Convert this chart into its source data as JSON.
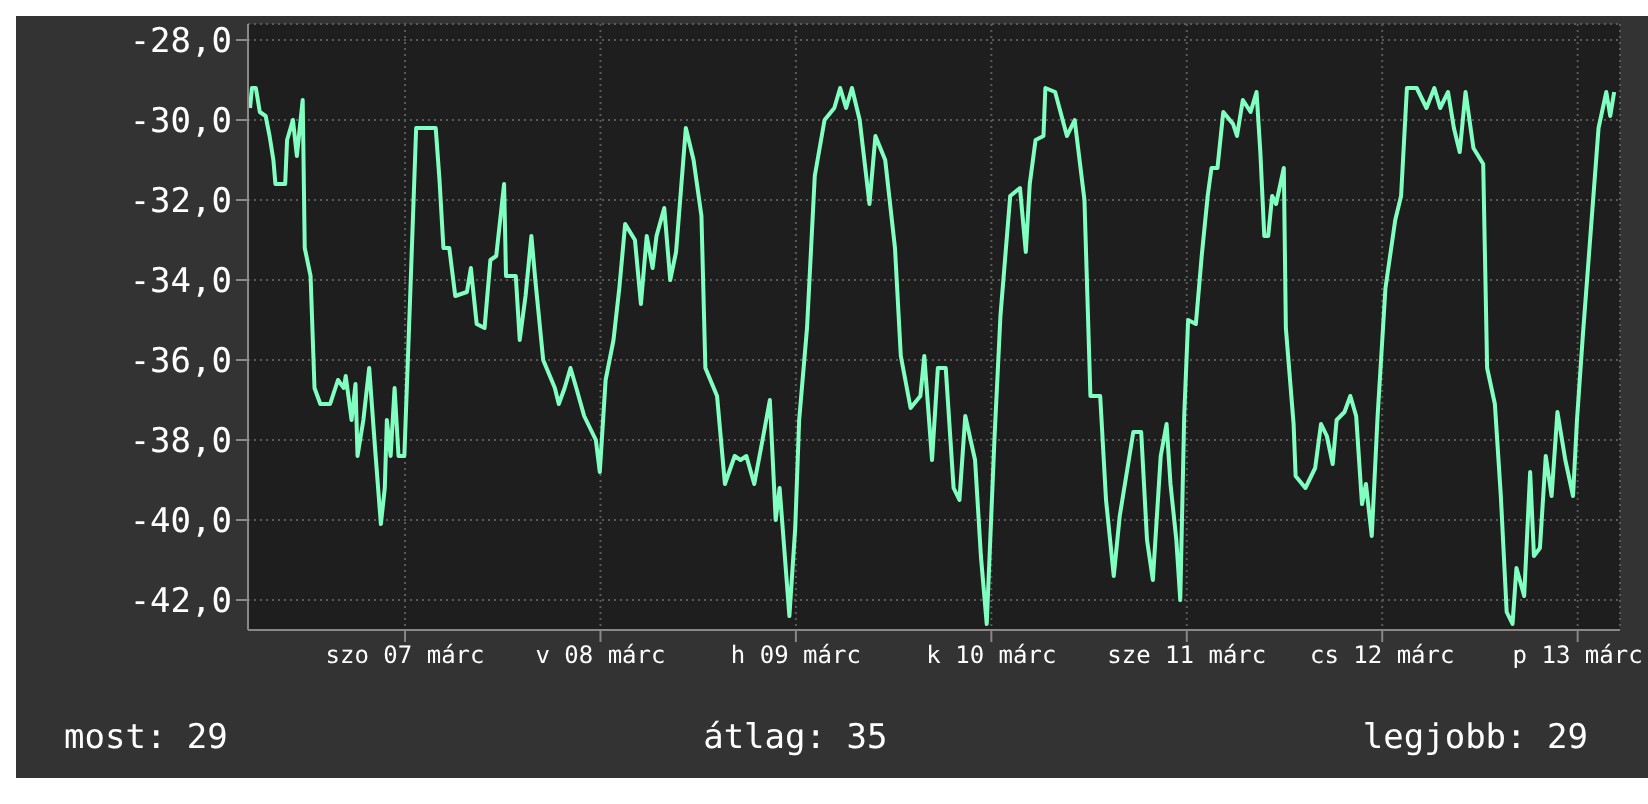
{
  "chart_data": {
    "type": "line",
    "x": [
      "--03-06T12:58",
      "--03-06T13:12",
      "--03-06T13:41",
      "--03-06T14:10",
      "--03-06T14:53",
      "--03-06T15:22",
      "--03-06T15:50",
      "--03-06T16:05",
      "--03-06T17:17",
      "--03-06T17:31",
      "--03-06T18:14",
      "--03-06T18:43",
      "--03-06T19:26",
      "--03-06T19:41",
      "--03-06T20:24",
      "--03-06T20:53",
      "--03-06T21:36",
      "--03-06T22:48",
      "--03-06T23:46",
      "--03-07T00:29",
      "--03-07T00:43",
      "--03-07T01:26",
      "--03-07T01:55",
      "--03-07T02:10",
      "--03-07T02:53",
      "--03-07T03:36",
      "--03-07T04:19",
      "--03-07T05:02",
      "--03-07T05:31",
      "--03-07T05:46",
      "--03-07T06:14",
      "--03-07T06:43",
      "--03-07T07:12",
      "--03-07T07:55",
      "--03-07T08:38",
      "--03-07T09:22",
      "--03-07T11:46",
      "--03-07T12:14",
      "--03-07T12:43",
      "--03-07T13:26",
      "--03-07T14:10",
      "--03-07T15:36",
      "--03-07T16:05",
      "--03-07T16:48",
      "--03-07T17:46",
      "--03-07T18:29",
      "--03-07T19:12",
      "--03-07T20:10",
      "--03-07T20:24",
      "--03-07T21:36",
      "--03-07T22:05",
      "--03-07T22:48",
      "--03-07T23:31",
      "--03-08T00:00",
      "--03-08T00:58",
      "--03-08T02:24",
      "--03-08T02:53",
      "--03-08T03:36",
      "--03-08T04:19",
      "--03-08T05:02",
      "--03-08T06:00",
      "--03-08T06:43",
      "--03-08T07:26",
      "--03-08T07:55",
      "--03-08T08:38",
      "--03-08T09:36",
      "--03-08T10:19",
      "--03-08T11:02",
      "--03-08T12:14",
      "--03-08T12:58",
      "--03-08T13:41",
      "--03-08T14:24",
      "--03-08T14:53",
      "--03-08T15:50",
      "--03-08T16:34",
      "--03-08T17:17",
      "--03-08T18:29",
      "--03-08T19:26",
      "--03-08T20:24",
      "--03-08T20:53",
      "--03-08T22:19",
      "--03-08T23:17",
      "--03-09T00:29",
      "--03-09T01:12",
      "--03-09T01:55",
      "--03-09T02:53",
      "--03-09T04:05",
      "--03-09T04:48",
      "--03-09T05:31",
      "--03-09T06:00",
      "--03-09T07:12",
      "--03-09T07:55",
      "--03-09T08:24",
      "--03-09T09:22",
      "--03-09T10:19",
      "--03-09T11:31",
      "--03-09T12:43",
      "--03-09T13:26",
      "--03-09T14:10",
      "--03-09T14:53",
      "--03-09T15:50",
      "--03-09T17:02",
      "--03-09T17:46",
      "--03-09T18:58",
      "--03-09T20:10",
      "--03-09T20:53",
      "--03-09T22:05",
      "--03-09T23:17",
      "--03-09T23:46",
      "--03-10T00:43",
      "--03-10T01:26",
      "--03-10T02:24",
      "--03-10T03:22",
      "--03-10T04:05",
      "--03-10T04:48",
      "--03-10T06:00",
      "--03-10T06:43",
      "--03-10T07:26",
      "--03-10T08:24",
      "--03-10T09:07",
      "--03-10T10:19",
      "--03-10T11:31",
      "--03-10T12:14",
      "--03-10T12:43",
      "--03-10T13:26",
      "--03-10T14:24",
      "--03-10T14:38",
      "--03-10T15:50",
      "--03-10T17:17",
      "--03-10T18:14",
      "--03-10T19:26",
      "--03-10T20:10",
      "--03-10T21:22",
      "--03-10T22:05",
      "--03-10T23:02",
      "--03-10T23:46",
      "--03-11T00:29",
      "--03-11T01:26",
      "--03-11T02:24",
      "--03-11T03:07",
      "--03-11T03:50",
      "--03-11T04:48",
      "--03-11T05:31",
      "--03-11T06:00",
      "--03-11T06:43",
      "--03-11T07:12",
      "--03-11T07:41",
      "--03-11T08:10",
      "--03-11T09:07",
      "--03-11T09:50",
      "--03-11T10:34",
      "--03-11T11:02",
      "--03-11T11:46",
      "--03-11T12:29",
      "--03-11T13:41",
      "--03-11T14:10",
      "--03-11T14:53",
      "--03-11T15:50",
      "--03-11T16:34",
      "--03-11T17:02",
      "--03-11T17:31",
      "--03-11T18:00",
      "--03-11T18:29",
      "--03-11T18:58",
      "--03-11T19:55",
      "--03-11T20:10",
      "--03-11T21:07",
      "--03-11T21:22",
      "--03-11T22:34",
      "--03-11T23:46",
      "--03-12T00:29",
      "--03-12T01:12",
      "--03-12T01:55",
      "--03-12T02:24",
      "--03-12T03:22",
      "--03-12T04:05",
      "--03-12T04:48",
      "--03-12T05:31",
      "--03-12T06:00",
      "--03-12T06:43",
      "--03-12T07:26",
      "--03-12T08:24",
      "--03-12T09:36",
      "--03-12T10:19",
      "--03-12T11:02",
      "--03-12T12:14",
      "--03-12T13:26",
      "--03-12T14:24",
      "--03-12T15:07",
      "--03-12T16:05",
      "--03-12T16:48",
      "--03-12T17:31",
      "--03-12T18:14",
      "--03-12T19:12",
      "--03-12T20:24",
      "--03-12T20:53",
      "--03-12T21:50",
      "--03-12T22:34",
      "--03-12T23:17",
      "--03-13T00:00",
      "--03-13T00:29",
      "--03-13T01:26",
      "--03-13T02:10",
      "--03-13T02:38",
      "--03-13T03:22",
      "--03-13T04:05",
      "--03-13T04:48",
      "--03-13T05:31",
      "--03-13T06:29",
      "--03-13T07:26",
      "--03-13T07:55",
      "--03-13T08:38",
      "--03-13T09:36",
      "--03-13T10:34",
      "--03-13T11:31",
      "--03-13T12:00",
      "--03-13T12:29"
    ],
    "series": [
      {
        "color": "#80ffc0",
        "values": [
          -29.7,
          -29.2,
          -29.2,
          -29.8,
          -29.9,
          -30.4,
          -31.0,
          -31.6,
          -31.6,
          -30.5,
          -30.0,
          -30.9,
          -29.5,
          -33.2,
          -33.9,
          -36.7,
          -37.1,
          -37.1,
          -36.5,
          -36.7,
          -36.4,
          -37.5,
          -36.6,
          -38.4,
          -37.5,
          -36.2,
          -38.2,
          -40.1,
          -39.2,
          -37.5,
          -38.4,
          -36.7,
          -38.4,
          -38.4,
          -34.4,
          -30.2,
          -30.2,
          -31.5,
          -33.2,
          -33.2,
          -34.4,
          -34.3,
          -33.7,
          -35.1,
          -35.2,
          -33.5,
          -33.4,
          -31.6,
          -33.9,
          -33.9,
          -35.5,
          -34.4,
          -32.9,
          -34.0,
          -36.0,
          -36.7,
          -37.1,
          -36.7,
          -36.2,
          -36.7,
          -37.4,
          -37.7,
          -38.0,
          -38.8,
          -36.5,
          -35.5,
          -34.2,
          -32.6,
          -33.0,
          -34.6,
          -32.9,
          -33.7,
          -32.9,
          -32.2,
          -34.0,
          -33.3,
          -30.2,
          -31.0,
          -32.4,
          -36.2,
          -36.9,
          -39.1,
          -38.4,
          -38.5,
          -38.4,
          -39.1,
          -37.8,
          -37.0,
          -40.0,
          -39.2,
          -42.4,
          -40.2,
          -37.5,
          -35.2,
          -31.4,
          -30.0,
          -29.7,
          -29.2,
          -29.7,
          -29.2,
          -30.0,
          -32.1,
          -30.4,
          -31.0,
          -33.2,
          -35.9,
          -37.2,
          -36.9,
          -35.9,
          -38.5,
          -36.2,
          -36.2,
          -39.2,
          -39.5,
          -37.4,
          -38.5,
          -40.9,
          -42.6,
          -37.9,
          -34.9,
          -31.9,
          -31.7,
          -33.3,
          -31.6,
          -30.5,
          -30.4,
          -29.2,
          -29.3,
          -30.4,
          -30.0,
          -32.0,
          -36.9,
          -36.9,
          -39.5,
          -41.4,
          -39.9,
          -39.0,
          -37.8,
          -37.8,
          -40.5,
          -41.5,
          -38.4,
          -37.6,
          -39.1,
          -40.5,
          -42.0,
          -37.4,
          -35.0,
          -35.1,
          -33.4,
          -31.9,
          -31.2,
          -31.2,
          -29.8,
          -30.1,
          -30.4,
          -29.5,
          -29.8,
          -29.3,
          -30.8,
          -32.9,
          -32.9,
          -31.9,
          -32.1,
          -31.2,
          -35.2,
          -37.6,
          -38.9,
          -39.2,
          -38.7,
          -37.6,
          -37.9,
          -38.6,
          -37.5,
          -37.3,
          -36.9,
          -37.4,
          -39.6,
          -39.1,
          -40.4,
          -37.4,
          -34.2,
          -32.5,
          -31.9,
          -29.2,
          -29.2,
          -29.7,
          -29.2,
          -29.7,
          -29.3,
          -30.2,
          -30.8,
          -29.3,
          -30.7,
          -31.1,
          -36.2,
          -37.1,
          -39.4,
          -42.3,
          -42.6,
          -41.2,
          -41.9,
          -38.8,
          -40.9,
          -40.7,
          -38.4,
          -39.4,
          -37.3,
          -38.5,
          -39.4,
          -37.5,
          -35.4,
          -32.8,
          -30.2,
          -29.3,
          -29.9,
          -29.3
        ]
      }
    ],
    "xlim": [
      "--03-06T12:43",
      "--03-13T13:12"
    ],
    "xticks": [
      {
        "value": "--03-07T08:00",
        "label": "szo 07 márc"
      },
      {
        "value": "--03-08T08:00",
        "label": "v 08 márc"
      },
      {
        "value": "--03-09T08:00",
        "label": "h 09 márc"
      },
      {
        "value": "--03-10T08:00",
        "label": "k 10 márc"
      },
      {
        "value": "--03-11T08:00",
        "label": "sze 11 márc"
      },
      {
        "value": "--03-12T08:00",
        "label": "cs 12 márc"
      },
      {
        "value": "--03-13T08:00",
        "label": "p 13 márc"
      }
    ],
    "ylim": [
      -42.75,
      -27.6
    ],
    "yticks": [
      {
        "value": -42,
        "label": "-42,0"
      },
      {
        "value": -40,
        "label": "-40,0"
      },
      {
        "value": -38,
        "label": "-38,0"
      },
      {
        "value": -36,
        "label": "-36,0"
      },
      {
        "value": -34,
        "label": "-34,0"
      },
      {
        "value": -32,
        "label": "-32,0"
      },
      {
        "value": -30,
        "label": "-30,0"
      },
      {
        "value": -28,
        "label": "-28,0"
      }
    ],
    "grid": true,
    "annotations": [
      "most: 29",
      "átlag: 35",
      "legjobb: 29"
    ]
  }
}
